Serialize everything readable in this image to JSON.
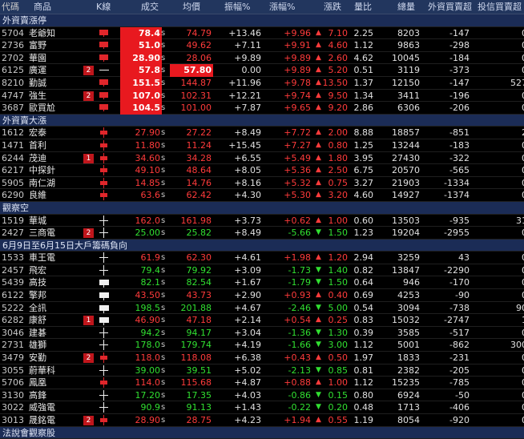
{
  "header": {
    "code": "代碼",
    "name": "商品",
    "k": "K線",
    "vol": "成交",
    "avg": "均價",
    "amp": "振幅%",
    "chg": "漲幅%",
    "diff": "漲跌",
    "ratio": "量比",
    "tv": "總量",
    "fi": "外資買賣超",
    "it": "投信買賣超"
  },
  "colors": {
    "up": "#ff3b3b",
    "down": "#31e031",
    "highlight": "#e8191f",
    "section": "#1b2c56"
  },
  "sections": [
    {
      "title": "外資賣漲停",
      "rows": [
        {
          "code": "5704",
          "name": "老爺知",
          "badge": "",
          "kline": "red-bar",
          "vol": "78.4",
          "s": "s",
          "avg": "74.79",
          "amp": "+13.46",
          "chg": "+9.96",
          "dir": "up",
          "arr": "▲",
          "diff": "7.10",
          "ratio": "2.25",
          "tv": "8203",
          "fi": "-147",
          "it": "0",
          "hl": true,
          "avgc": "up"
        },
        {
          "code": "2736",
          "name": "富野",
          "badge": "",
          "kline": "red-bar",
          "vol": "51.0",
          "s": "s",
          "avg": "49.62",
          "amp": "+7.11",
          "chg": "+9.91",
          "dir": "up",
          "arr": "▲",
          "diff": "4.60",
          "ratio": "1.12",
          "tv": "9863",
          "fi": "-298",
          "it": "0",
          "hl": true,
          "avgc": "up"
        },
        {
          "code": "2702",
          "name": "華園",
          "badge": "",
          "kline": "red-bar",
          "vol": "28.90",
          "s": "s",
          "avg": "28.06",
          "amp": "+9.89",
          "chg": "+9.89",
          "dir": "up",
          "arr": "▲",
          "diff": "2.60",
          "ratio": "4.62",
          "tv": "10045",
          "fi": "-184",
          "it": "0",
          "hl": true,
          "avgc": "up"
        },
        {
          "code": "6125",
          "name": "廣運",
          "badge": "2",
          "kline": "dash",
          "vol": "57.8",
          "s": "s",
          "avg": "57.80",
          "amp": "0.00",
          "chg": "+9.89",
          "dir": "up",
          "arr": "▲",
          "diff": "5.20",
          "ratio": "0.51",
          "tv": "3119",
          "fi": "-373",
          "it": "0",
          "hl": true,
          "avghl": true,
          "avgc": "up"
        },
        {
          "code": "8210",
          "name": "勤誠",
          "badge": "",
          "kline": "red-bar",
          "vol": "151.5",
          "s": "s",
          "avg": "144.87",
          "amp": "+11.96",
          "chg": "+9.78",
          "dir": "up",
          "arr": "▲",
          "diff": "13.50",
          "ratio": "1.37",
          "tv": "12150",
          "fi": "-147",
          "it": "527",
          "hl": true,
          "avgc": "up"
        },
        {
          "code": "4747",
          "name": "強生",
          "badge": "2",
          "kline": "red-bar",
          "vol": "107.0",
          "s": "s",
          "avg": "102.31",
          "amp": "+12.21",
          "chg": "+9.74",
          "dir": "up",
          "arr": "▲",
          "diff": "9.50",
          "ratio": "1.34",
          "tv": "3411",
          "fi": "-196",
          "it": "0",
          "hl": true,
          "avgc": "up"
        },
        {
          "code": "3687",
          "name": "歐買尬",
          "badge": "",
          "kline": "red-bar",
          "vol": "104.5",
          "s": "s",
          "avg": "101.00",
          "amp": "+7.87",
          "chg": "+9.65",
          "dir": "up",
          "arr": "▲",
          "diff": "9.20",
          "ratio": "2.86",
          "tv": "6306",
          "fi": "-206",
          "it": "0",
          "hl": true,
          "avgc": "up"
        }
      ]
    },
    {
      "title": "外資賣大漲",
      "rows": [
        {
          "code": "1612",
          "name": "宏泰",
          "badge": "",
          "kline": "red-cross",
          "vol": "27.90",
          "s": "s",
          "avg": "27.22",
          "amp": "+8.49",
          "chg": "+7.72",
          "dir": "up",
          "arr": "▲",
          "diff": "2.00",
          "ratio": "8.88",
          "tv": "18857",
          "fi": "-851",
          "it": "2",
          "hl": false,
          "avgc": "up"
        },
        {
          "code": "1471",
          "name": "首利",
          "badge": "",
          "kline": "red-cross",
          "vol": "11.80",
          "s": "s",
          "avg": "11.24",
          "amp": "+15.45",
          "chg": "+7.27",
          "dir": "up",
          "arr": "▲",
          "diff": "0.80",
          "ratio": "1.25",
          "tv": "13244",
          "fi": "-183",
          "it": "0",
          "hl": false,
          "avgc": "up"
        },
        {
          "code": "6244",
          "name": "茂迪",
          "badge": "1",
          "kline": "red-cross",
          "vol": "34.60",
          "s": "s",
          "avg": "34.28",
          "amp": "+6.55",
          "chg": "+5.49",
          "dir": "up",
          "arr": "▲",
          "diff": "1.80",
          "ratio": "3.95",
          "tv": "27430",
          "fi": "-322",
          "it": "0",
          "hl": false,
          "avgc": "up"
        },
        {
          "code": "6217",
          "name": "中探針",
          "badge": "",
          "kline": "red-cross",
          "vol": "49.10",
          "s": "s",
          "avg": "48.64",
          "amp": "+8.05",
          "chg": "+5.36",
          "dir": "up",
          "arr": "▲",
          "diff": "2.50",
          "ratio": "6.75",
          "tv": "20570",
          "fi": "-565",
          "it": "0",
          "hl": false,
          "avgc": "up"
        },
        {
          "code": "5905",
          "name": "南仁湖",
          "badge": "",
          "kline": "red-cross",
          "vol": "14.85",
          "s": "s",
          "avg": "14.76",
          "amp": "+8.16",
          "chg": "+5.32",
          "dir": "up",
          "arr": "▲",
          "diff": "0.75",
          "ratio": "3.27",
          "tv": "21903",
          "fi": "-1334",
          "it": "0",
          "hl": false,
          "avgc": "up"
        },
        {
          "code": "6290",
          "name": "良維",
          "badge": "",
          "kline": "red-cross",
          "vol": "63.6",
          "s": "s",
          "avg": "62.42",
          "amp": "+4.30",
          "chg": "+5.30",
          "dir": "up",
          "arr": "▲",
          "diff": "3.20",
          "ratio": "4.60",
          "tv": "14927",
          "fi": "-1374",
          "it": "0",
          "hl": false,
          "avgc": "up"
        }
      ]
    },
    {
      "title": "觀察空",
      "rows": [
        {
          "code": "1519",
          "name": "華城",
          "badge": "",
          "kline": "white-cross",
          "vol": "162.0",
          "s": "s",
          "avg": "161.98",
          "amp": "+3.73",
          "chg": "+0.62",
          "dir": "up",
          "arr": "▲",
          "diff": "1.00",
          "ratio": "0.60",
          "tv": "13503",
          "fi": "-935",
          "it": "31",
          "hl": false,
          "avgc": "up"
        },
        {
          "code": "2427",
          "name": "三商電",
          "badge": "2",
          "kline": "white-cross",
          "vol": "25.00",
          "s": "s",
          "avg": "25.82",
          "amp": "+8.49",
          "chg": "-5.66",
          "dir": "dn",
          "arr": "▼",
          "diff": "1.50",
          "ratio": "1.23",
          "tv": "19204",
          "fi": "-2955",
          "it": "0",
          "hl": false,
          "avgc": "dn"
        }
      ]
    },
    {
      "title": "6月9日至6月15日大戶籌碼負向",
      "rows": [
        {
          "code": "1533",
          "name": "車王電",
          "badge": "",
          "kline": "white-cross",
          "vol": "61.9",
          "s": "s",
          "avg": "62.30",
          "amp": "+4.61",
          "chg": "+1.98",
          "dir": "up",
          "arr": "▲",
          "diff": "1.20",
          "ratio": "2.94",
          "tv": "3259",
          "fi": "43",
          "it": "0",
          "hl": false,
          "avgc": "up"
        },
        {
          "code": "2457",
          "name": "飛宏",
          "badge": "",
          "kline": "white-cross",
          "vol": "79.4",
          "s": "s",
          "avg": "79.92",
          "amp": "+3.09",
          "chg": "-1.73",
          "dir": "dn",
          "arr": "▼",
          "diff": "1.40",
          "ratio": "0.82",
          "tv": "13847",
          "fi": "-2290",
          "it": "0",
          "hl": false,
          "avgc": "dn"
        },
        {
          "code": "5439",
          "name": "高技",
          "badge": "",
          "kline": "white-bar",
          "vol": "82.1",
          "s": "s",
          "avg": "82.54",
          "amp": "+1.67",
          "chg": "-1.79",
          "dir": "dn",
          "arr": "▼",
          "diff": "1.50",
          "ratio": "0.64",
          "tv": "946",
          "fi": "-170",
          "it": "0",
          "hl": false,
          "avgc": "dn"
        },
        {
          "code": "6122",
          "name": "擎邦",
          "badge": "",
          "kline": "white-bar",
          "vol": "43.50",
          "s": "s",
          "avg": "43.73",
          "amp": "+2.90",
          "chg": "+0.93",
          "dir": "up",
          "arr": "▲",
          "diff": "0.40",
          "ratio": "0.69",
          "tv": "4253",
          "fi": "-90",
          "it": "0",
          "hl": false,
          "avgc": "up"
        },
        {
          "code": "5222",
          "name": "全訊",
          "badge": "",
          "kline": "white-bar",
          "vol": "198.5",
          "s": "s",
          "avg": "201.88",
          "amp": "+4.67",
          "chg": "-2.46",
          "dir": "dn",
          "arr": "▼",
          "diff": "5.00",
          "ratio": "0.54",
          "tv": "3094",
          "fi": "-738",
          "it": "90",
          "hl": false,
          "avgc": "dn"
        },
        {
          "code": "6282",
          "name": "康舒",
          "badge": "1",
          "kline": "white-bar",
          "vol": "46.90",
          "s": "s",
          "avg": "47.18",
          "amp": "+2.14",
          "chg": "+0.54",
          "dir": "up",
          "arr": "▲",
          "diff": "0.25",
          "ratio": "0.83",
          "tv": "15032",
          "fi": "-2747",
          "it": "1",
          "hl": false,
          "avgc": "up"
        },
        {
          "code": "3046",
          "name": "建碁",
          "badge": "",
          "kline": "white-cross",
          "vol": "94.2",
          "s": "s",
          "avg": "94.17",
          "amp": "+3.04",
          "chg": "-1.36",
          "dir": "dn",
          "arr": "▼",
          "diff": "1.30",
          "ratio": "0.39",
          "tv": "3585",
          "fi": "-517",
          "it": "0",
          "hl": false,
          "avgc": "dn"
        },
        {
          "code": "2731",
          "name": "雄獅",
          "badge": "",
          "kline": "white-cross",
          "vol": "178.0",
          "s": "s",
          "avg": "179.74",
          "amp": "+4.19",
          "chg": "-1.66",
          "dir": "dn",
          "arr": "▼",
          "diff": "3.00",
          "ratio": "1.12",
          "tv": "5001",
          "fi": "-862",
          "it": "300",
          "hl": false,
          "avgc": "dn"
        },
        {
          "code": "3479",
          "name": "安勤",
          "badge": "2",
          "kline": "red-cross",
          "vol": "118.0",
          "s": "s",
          "avg": "118.08",
          "amp": "+6.38",
          "chg": "+0.43",
          "dir": "up",
          "arr": "▲",
          "diff": "0.50",
          "ratio": "1.97",
          "tv": "1833",
          "fi": "-231",
          "it": "0",
          "hl": false,
          "avgc": "up"
        },
        {
          "code": "3055",
          "name": "蔚華科",
          "badge": "",
          "kline": "white-cross",
          "vol": "39.00",
          "s": "s",
          "avg": "39.51",
          "amp": "+5.02",
          "chg": "-2.13",
          "dir": "dn",
          "arr": "▼",
          "diff": "0.85",
          "ratio": "0.81",
          "tv": "2382",
          "fi": "-205",
          "it": "0",
          "hl": false,
          "avgc": "dn"
        },
        {
          "code": "5706",
          "name": "鳳凰",
          "badge": "",
          "kline": "red-cross",
          "vol": "114.0",
          "s": "s",
          "avg": "115.68",
          "amp": "+4.87",
          "chg": "+0.88",
          "dir": "up",
          "arr": "▲",
          "diff": "1.00",
          "ratio": "1.12",
          "tv": "15235",
          "fi": "-785",
          "it": "0",
          "hl": false,
          "avgc": "up"
        },
        {
          "code": "3130",
          "name": "高鋒",
          "badge": "",
          "kline": "white-cross",
          "vol": "17.20",
          "s": "s",
          "avg": "17.35",
          "amp": "+4.03",
          "chg": "-0.86",
          "dir": "dn",
          "arr": "▼",
          "diff": "0.15",
          "ratio": "0.80",
          "tv": "6924",
          "fi": "-50",
          "it": "0",
          "hl": false,
          "avgc": "dn"
        },
        {
          "code": "3022",
          "name": "威強電",
          "badge": "",
          "kline": "white-cross",
          "vol": "90.9",
          "s": "s",
          "avg": "91.13",
          "amp": "+1.43",
          "chg": "-0.22",
          "dir": "dn",
          "arr": "▼",
          "diff": "0.20",
          "ratio": "0.48",
          "tv": "1713",
          "fi": "-406",
          "it": "0",
          "hl": false,
          "avgc": "dn"
        },
        {
          "code": "3013",
          "name": "晟銘電",
          "badge": "2",
          "kline": "red-cross",
          "vol": "28.90",
          "s": "s",
          "avg": "28.75",
          "amp": "+4.23",
          "chg": "+1.94",
          "dir": "up",
          "arr": "▲",
          "diff": "0.55",
          "ratio": "1.19",
          "tv": "8054",
          "fi": "-920",
          "it": "0",
          "hl": false,
          "avgc": "up"
        }
      ]
    },
    {
      "title": "法說會觀察股",
      "rows": []
    }
  ]
}
